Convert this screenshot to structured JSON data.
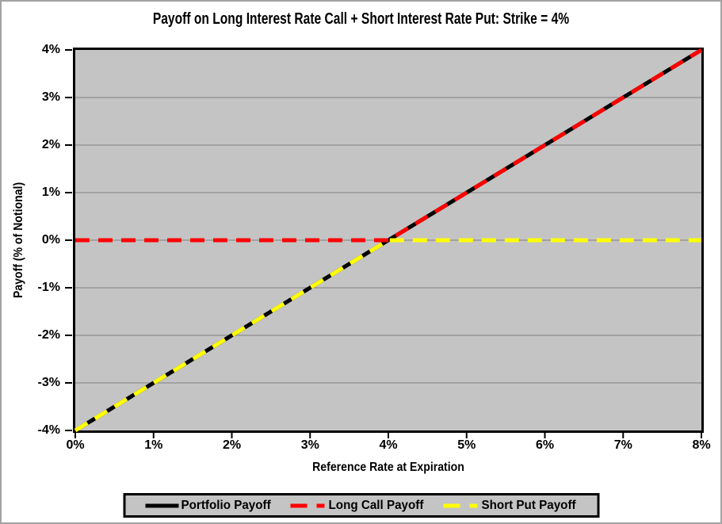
{
  "chart_data": {
    "type": "line",
    "title": "Payoff on Long Interest Rate Call + Short Interest Rate Put: Strike = 4%",
    "xlabel": "Reference Rate at Expiration",
    "ylabel": "Payoff (% of Notional)",
    "xlim": [
      0,
      8
    ],
    "ylim": [
      -4,
      4
    ],
    "xticks": [
      0,
      1,
      2,
      3,
      4,
      5,
      6,
      7,
      8
    ],
    "xtick_labels": [
      "0%",
      "1%",
      "2%",
      "3%",
      "4%",
      "5%",
      "6%",
      "7%",
      "8%"
    ],
    "yticks": [
      4,
      3,
      2,
      1,
      0,
      -1,
      -2,
      -3,
      -4
    ],
    "ytick_labels": [
      "4%",
      "3%",
      "2%",
      "1%",
      "0%",
      "-1%",
      "-2%",
      "-3%",
      "-4%"
    ],
    "grid": "horizontal-only",
    "plot_bg_color": "#C4C4C4",
    "gridline_color": "#7F7F7F",
    "axis_color": "#000000",
    "legend_position": "bottom",
    "strike_annotation": "Strike = 4%",
    "series": [
      {
        "name": "Portfolio Payoff",
        "color": "#000000",
        "style": "solid",
        "points": [
          [
            0,
            -4
          ],
          [
            4,
            0
          ],
          [
            8,
            4
          ]
        ]
      },
      {
        "name": "Long Call Payoff",
        "color": "#FF0000",
        "style": "dashed",
        "points": [
          [
            0,
            0
          ],
          [
            4,
            0
          ],
          [
            8,
            4
          ]
        ]
      },
      {
        "name": "Short Put Payoff",
        "color": "#FFFF00",
        "style": "dashed",
        "points": [
          [
            0,
            -4
          ],
          [
            4,
            0
          ],
          [
            8,
            0
          ]
        ]
      }
    ]
  }
}
